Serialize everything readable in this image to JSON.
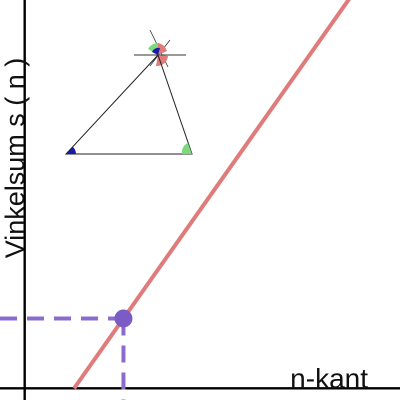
{
  "chart_data": {
    "type": "line",
    "xlabel": "n-kant",
    "ylabel": "Vinkelsum s ( n )",
    "xlim": [
      0.5,
      8.6
    ],
    "ylim": [
      -30,
      1000
    ],
    "grid": false,
    "series": [
      {
        "x": [
          2,
          8.6
        ],
        "y": [
          0,
          1188
        ],
        "color": "#e07b7b"
      }
    ],
    "highlight_point": {
      "x": 3,
      "y": 180,
      "color": "#7b5cc4",
      "guide_color": "#8a6ccf"
    },
    "inset": {
      "description_icon": "triangle-angle-sum-icon",
      "colors": {
        "angle_red": "#e07b7b",
        "angle_green": "#7ed87e",
        "angle_blue": "#1a1aa8"
      }
    }
  }
}
